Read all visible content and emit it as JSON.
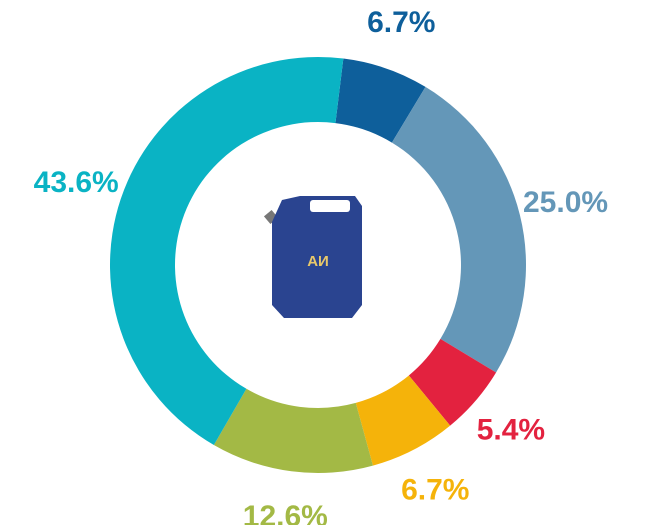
{
  "chart_data": {
    "type": "donut",
    "categories": [
      null,
      null,
      null,
      null,
      null,
      null
    ],
    "values": [
      6.7,
      25.0,
      5.4,
      6.7,
      12.6,
      43.6
    ],
    "value_labels": [
      "6.7%",
      "25.0%",
      "5.4%",
      "6.7%",
      "12.6%",
      "43.6%"
    ],
    "colors": [
      "#0e5f9b",
      "#6497b8",
      "#e3223f",
      "#f5b30a",
      "#a3b945",
      "#0ab3c4"
    ]
  },
  "icon": {
    "label": "АИ"
  }
}
